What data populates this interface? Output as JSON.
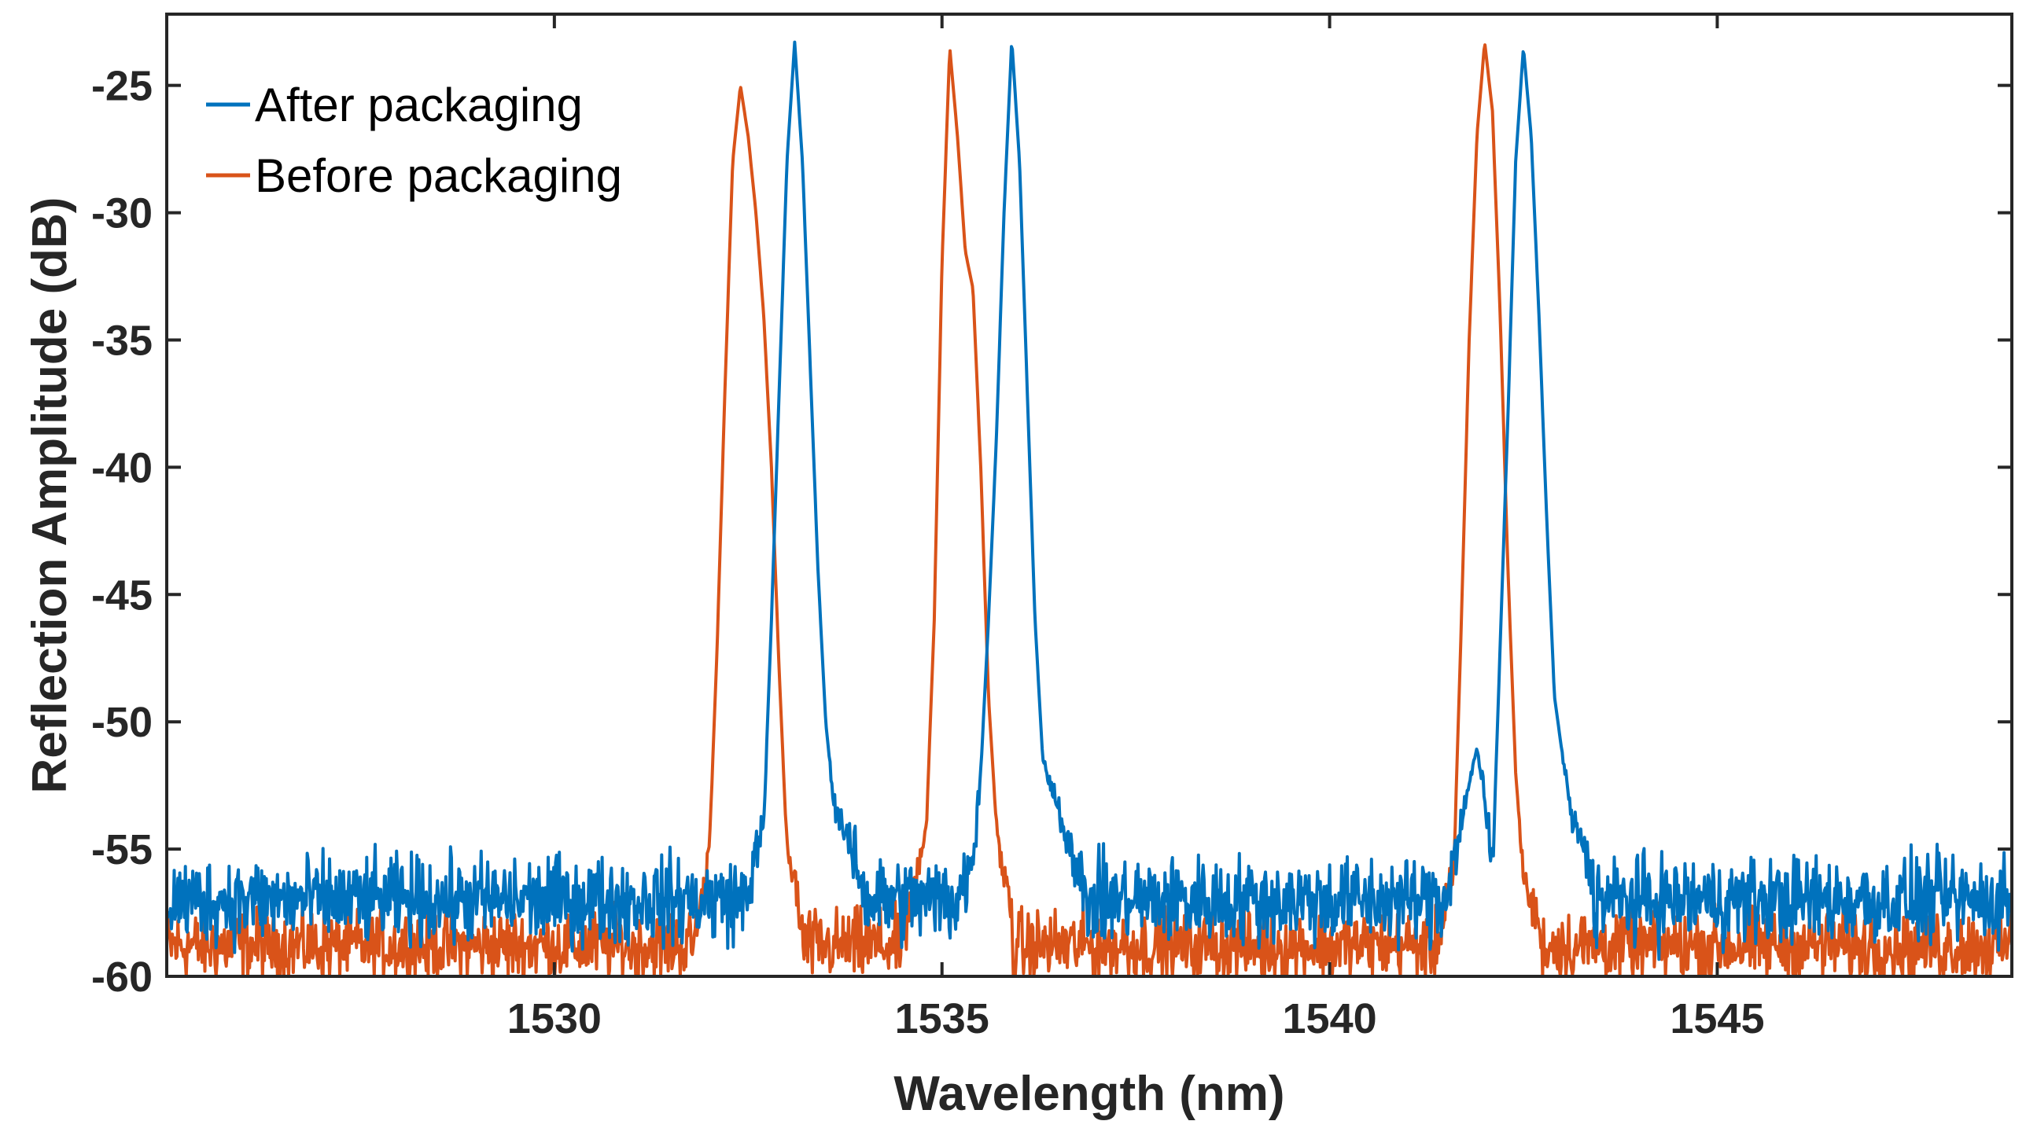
{
  "chart_data": {
    "type": "line",
    "title": "",
    "xlabel": "Wavelength (nm)",
    "ylabel": "Reflection Amplitude (dB)",
    "xlim": [
      1525.0,
      1548.8
    ],
    "ylim": [
      -60,
      -22.2
    ],
    "xticks": [
      1530,
      1535,
      1540,
      1545
    ],
    "xtick_labels": [
      "1530",
      "1535",
      "1540",
      "1545"
    ],
    "yticks": [
      -60,
      -55,
      -50,
      -45,
      -40,
      -35,
      -30,
      -25
    ],
    "ytick_labels": [
      "-60",
      "-55",
      "-50",
      "-45",
      "-40",
      "-35",
      "-30",
      "-25"
    ],
    "grid": false,
    "legend_position": "top-left",
    "series": [
      {
        "name": "After packaging",
        "color": "#0072BD",
        "baseline": -57.0,
        "noise": 1.2,
        "peaks": [
          {
            "center": 1533.1,
            "peak": -23.3,
            "x": [
              1532.5,
              1532.7,
              1532.8,
              1532.9,
              1533.0,
              1533.1,
              1533.2,
              1533.3,
              1533.4,
              1533.5,
              1533.6,
              1533.8,
              1534.0
            ],
            "y": [
              -57.0,
              -54.0,
              -46.0,
              -37.0,
              -28.0,
              -23.3,
              -28.0,
              -36.0,
              -44.0,
              -50.0,
              -53.0,
              -55.0,
              -56.5
            ]
          },
          {
            "center": 1535.9,
            "peak": -23.2,
            "x": [
              1535.2,
              1535.4,
              1535.5,
              1535.6,
              1535.7,
              1535.8,
              1535.9,
              1536.0,
              1536.1,
              1536.2,
              1536.3,
              1536.5,
              1536.8
            ],
            "y": [
              -57.0,
              -55.5,
              -52.0,
              -46.0,
              -39.0,
              -30.0,
              -23.2,
              -28.0,
              -37.0,
              -46.0,
              -51.5,
              -53.5,
              -56.0
            ]
          },
          {
            "center": 1542.5,
            "peak": -23.5,
            "x": [
              1541.5,
              1541.9,
              1542.0,
              1542.1,
              1542.2,
              1542.3,
              1542.4,
              1542.5,
              1542.6,
              1542.7,
              1542.8,
              1542.9,
              1543.1,
              1543.4
            ],
            "y": [
              -57.0,
              -51.0,
              -53.0,
              -56.0,
              -47.0,
              -38.0,
              -28.0,
              -23.5,
              -27.0,
              -34.0,
              -42.0,
              -49.0,
              -53.5,
              -56.0
            ]
          }
        ]
      },
      {
        "name": "Before packaging",
        "color": "#D95319",
        "baseline": -58.8,
        "noise": 1.0,
        "peaks": [
          {
            "center": 1532.4,
            "peak": -25.0,
            "x": [
              1531.8,
              1532.0,
              1532.1,
              1532.2,
              1532.3,
              1532.4,
              1532.5,
              1532.6,
              1532.7,
              1532.8,
              1532.9,
              1533.0,
              1533.2
            ],
            "y": [
              -58.8,
              -55.0,
              -47.0,
              -37.0,
              -28.0,
              -25.0,
              -27.0,
              -30.0,
              -34.0,
              -40.0,
              -48.0,
              -55.0,
              -58.0
            ]
          },
          {
            "center": 1535.1,
            "peak": -23.5,
            "x": [
              1534.5,
              1534.8,
              1534.9,
              1535.0,
              1535.1,
              1535.2,
              1535.3,
              1535.4,
              1535.5,
              1535.6,
              1535.7,
              1535.9
            ],
            "y": [
              -58.8,
              -54.0,
              -46.0,
              -32.0,
              -23.5,
              -27.0,
              -31.5,
              -33.0,
              -40.0,
              -49.0,
              -54.0,
              -58.0
            ]
          },
          {
            "center": 1542.0,
            "peak": -23.3,
            "x": [
              1541.4,
              1541.6,
              1541.7,
              1541.8,
              1541.9,
              1542.0,
              1542.1,
              1542.2,
              1542.3,
              1542.4,
              1542.5,
              1542.7
            ],
            "y": [
              -58.8,
              -56.0,
              -46.0,
              -35.0,
              -27.0,
              -23.3,
              -26.0,
              -34.0,
              -44.0,
              -52.0,
              -56.0,
              -58.5
            ]
          }
        ]
      }
    ]
  }
}
